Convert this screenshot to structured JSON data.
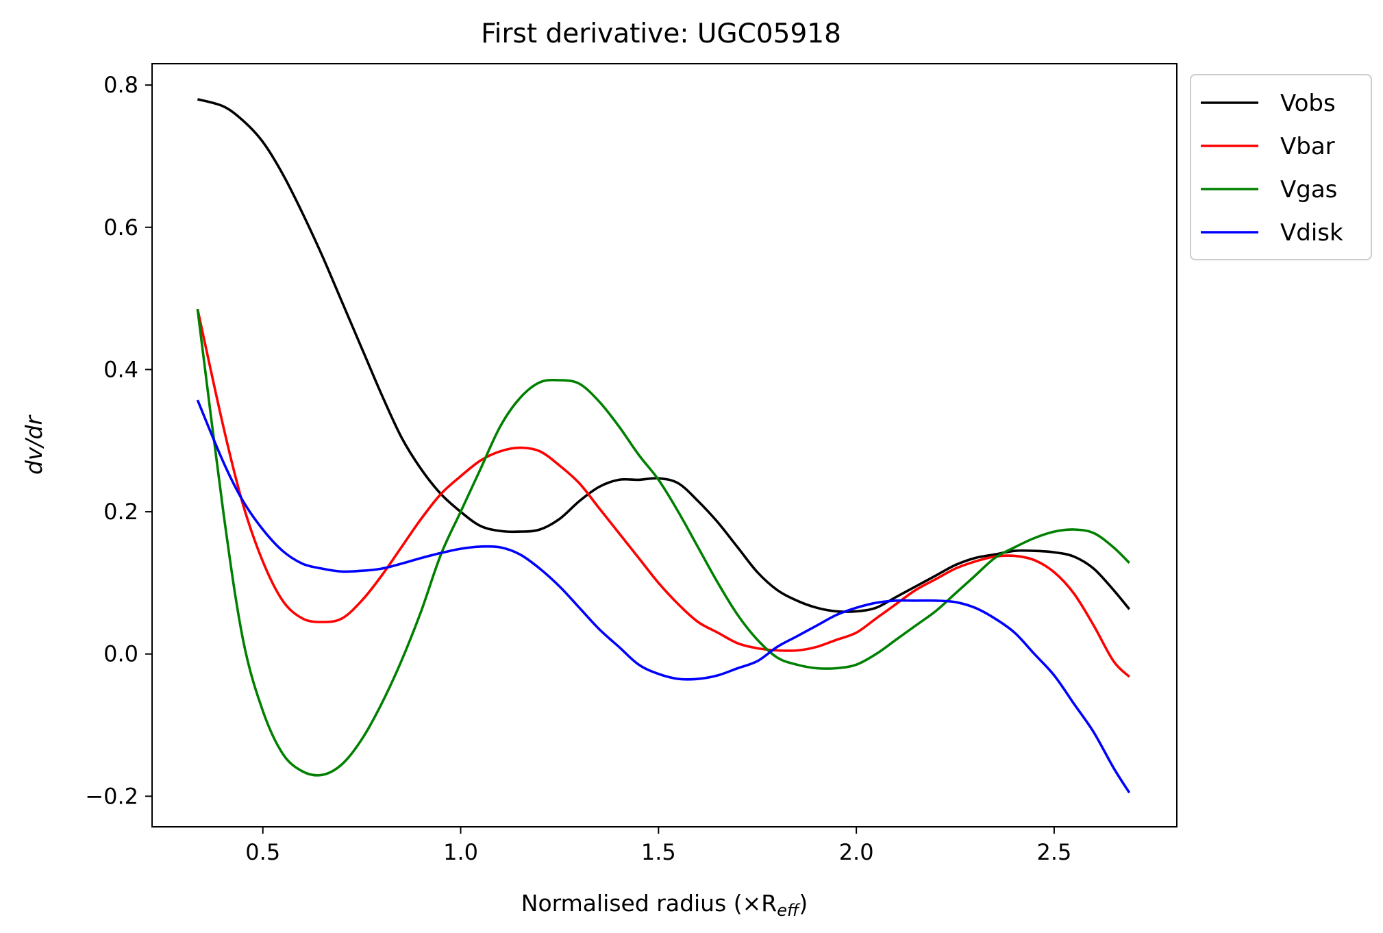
{
  "chart_data": {
    "type": "line",
    "title": "First derivative: UGC05918",
    "xlabel": "Normalised radius (×R",
    "xlabel_sub": "eff",
    "xlabel_close": ")",
    "ylabel": "dv/dr",
    "xlim": [
      0.22,
      2.81
    ],
    "ylim": [
      -0.243,
      0.83
    ],
    "xticks": [
      0.5,
      1.0,
      1.5,
      2.0,
      2.5
    ],
    "xtick_labels": [
      "0.5",
      "1.0",
      "1.5",
      "2.0",
      "2.5"
    ],
    "yticks": [
      -0.2,
      0.0,
      0.2,
      0.4,
      0.6,
      0.8
    ],
    "ytick_labels": [
      "−0.2",
      "0.0",
      "0.2",
      "0.4",
      "0.6",
      "0.8"
    ],
    "grid": false,
    "legend_position": "outside upper right",
    "x": [
      0.335,
      0.4,
      0.45,
      0.5,
      0.55,
      0.6,
      0.65,
      0.7,
      0.75,
      0.8,
      0.85,
      0.9,
      0.95,
      1.0,
      1.05,
      1.1,
      1.15,
      1.2,
      1.25,
      1.3,
      1.35,
      1.4,
      1.45,
      1.5,
      1.55,
      1.6,
      1.65,
      1.7,
      1.75,
      1.8,
      1.85,
      1.9,
      1.95,
      2.0,
      2.05,
      2.1,
      2.15,
      2.2,
      2.25,
      2.3,
      2.35,
      2.4,
      2.45,
      2.5,
      2.55,
      2.6,
      2.65,
      2.69
    ],
    "series": [
      {
        "name": "Vobs",
        "color": "#000000",
        "values": [
          0.78,
          0.77,
          0.75,
          0.72,
          0.675,
          0.62,
          0.56,
          0.495,
          0.43,
          0.365,
          0.305,
          0.26,
          0.225,
          0.2,
          0.18,
          0.173,
          0.172,
          0.175,
          0.19,
          0.215,
          0.235,
          0.245,
          0.245,
          0.247,
          0.24,
          0.215,
          0.185,
          0.15,
          0.115,
          0.09,
          0.075,
          0.065,
          0.06,
          0.06,
          0.065,
          0.08,
          0.095,
          0.11,
          0.125,
          0.135,
          0.14,
          0.145,
          0.145,
          0.143,
          0.137,
          0.12,
          0.09,
          0.063
        ]
      },
      {
        "name": "Vbar",
        "color": "#ff0000",
        "values": [
          0.485,
          0.32,
          0.21,
          0.13,
          0.075,
          0.05,
          0.045,
          0.05,
          0.075,
          0.11,
          0.15,
          0.19,
          0.225,
          0.25,
          0.272,
          0.285,
          0.29,
          0.285,
          0.265,
          0.24,
          0.205,
          0.17,
          0.135,
          0.1,
          0.07,
          0.045,
          0.03,
          0.015,
          0.008,
          0.005,
          0.005,
          0.01,
          0.02,
          0.03,
          0.05,
          0.07,
          0.09,
          0.105,
          0.12,
          0.13,
          0.137,
          0.138,
          0.132,
          0.115,
          0.085,
          0.04,
          -0.01,
          -0.032
        ]
      },
      {
        "name": "Vgas",
        "color": "#008000",
        "values": [
          0.485,
          0.2,
          0.02,
          -0.08,
          -0.14,
          -0.165,
          -0.17,
          -0.155,
          -0.12,
          -0.07,
          -0.01,
          0.06,
          0.14,
          0.2,
          0.26,
          0.32,
          0.36,
          0.382,
          0.385,
          0.38,
          0.355,
          0.32,
          0.28,
          0.245,
          0.2,
          0.15,
          0.1,
          0.055,
          0.02,
          -0.005,
          -0.015,
          -0.02,
          -0.02,
          -0.015,
          0.0,
          0.02,
          0.04,
          0.06,
          0.085,
          0.11,
          0.135,
          0.15,
          0.163,
          0.172,
          0.175,
          0.17,
          0.15,
          0.128
        ]
      },
      {
        "name": "Vdisk",
        "color": "#0000ff",
        "values": [
          0.357,
          0.27,
          0.215,
          0.175,
          0.145,
          0.127,
          0.12,
          0.116,
          0.117,
          0.12,
          0.127,
          0.135,
          0.142,
          0.148,
          0.151,
          0.15,
          0.14,
          0.12,
          0.095,
          0.065,
          0.035,
          0.01,
          -0.015,
          -0.028,
          -0.035,
          -0.035,
          -0.03,
          -0.02,
          -0.01,
          0.01,
          0.025,
          0.04,
          0.055,
          0.065,
          0.072,
          0.075,
          0.075,
          0.075,
          0.073,
          0.065,
          0.05,
          0.03,
          0.0,
          -0.03,
          -0.07,
          -0.11,
          -0.16,
          -0.195
        ]
      }
    ]
  }
}
